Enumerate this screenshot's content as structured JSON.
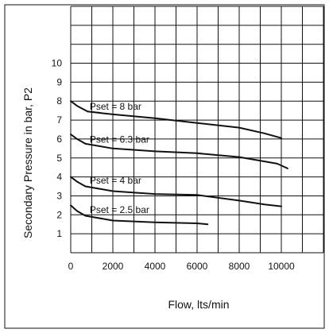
{
  "chart_data": {
    "type": "line",
    "xlabel": "Flow, lts/min",
    "ylabel": "Secondary Pressure in bar, P2",
    "xlim": [
      0,
      12000
    ],
    "ylim": [
      0,
      13
    ],
    "x_ticks": [
      0,
      2000,
      4000,
      6000,
      8000,
      10000
    ],
    "y_ticks": [
      1,
      2,
      3,
      4,
      5,
      6,
      7,
      8,
      9,
      10
    ],
    "grid": true,
    "series": [
      {
        "name": "Pset = 8 bar",
        "points": [
          [
            0,
            8.0
          ],
          [
            300,
            7.75
          ],
          [
            800,
            7.45
          ],
          [
            2000,
            7.3
          ],
          [
            4000,
            7.1
          ],
          [
            6000,
            6.85
          ],
          [
            8000,
            6.6
          ],
          [
            9200,
            6.3
          ],
          [
            10000,
            6.05
          ]
        ]
      },
      {
        "name": "Pset = 6.3 bar",
        "points": [
          [
            0,
            6.25
          ],
          [
            300,
            6.0
          ],
          [
            700,
            5.75
          ],
          [
            2000,
            5.5
          ],
          [
            4000,
            5.35
          ],
          [
            6000,
            5.25
          ],
          [
            8000,
            5.05
          ],
          [
            9800,
            4.7
          ],
          [
            10300,
            4.45
          ]
        ]
      },
      {
        "name": "Pset = 4 bar",
        "points": [
          [
            0,
            4.0
          ],
          [
            300,
            3.75
          ],
          [
            700,
            3.5
          ],
          [
            2000,
            3.25
          ],
          [
            4000,
            3.1
          ],
          [
            6000,
            3.05
          ],
          [
            8000,
            2.75
          ],
          [
            9200,
            2.55
          ],
          [
            10000,
            2.45
          ]
        ]
      },
      {
        "name": "Pset = 2.5 bar",
        "points": [
          [
            0,
            2.5
          ],
          [
            300,
            2.2
          ],
          [
            700,
            1.95
          ],
          [
            2000,
            1.7
          ],
          [
            4000,
            1.6
          ],
          [
            6000,
            1.55
          ],
          [
            6500,
            1.5
          ]
        ]
      }
    ]
  }
}
